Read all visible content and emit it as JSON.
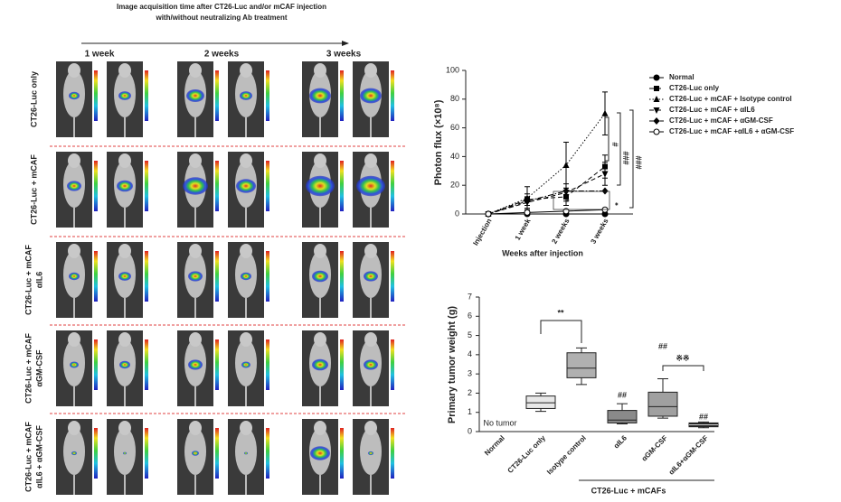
{
  "panel_a": {
    "header": [
      "Image acquisition time after CT26-Luc and/or mCAF injection",
      "with/without neutralizing Ab treatment"
    ],
    "time_labels": [
      "1 week",
      "2 weeks",
      "3 weeks"
    ],
    "row_labels": [
      [
        "CT26-Luc only"
      ],
      [
        "CT26-Luc + mCAF"
      ],
      [
        "CT26-Luc + mCAF",
        "αIL6"
      ],
      [
        "CT26-Luc + mCAF",
        "αGM-CSF"
      ],
      [
        "CT26-Luc + mCAF",
        "αIL6 + αGM-CSF"
      ]
    ]
  },
  "chart_data": [
    {
      "type": "line",
      "ylabel": "Photon flux (×10⁸)",
      "xlabel": "Weeks after injection",
      "categories": [
        "Injection",
        "1 week",
        "2 weeks",
        "3 weeks"
      ],
      "ylim": [
        0,
        100
      ],
      "yticks": [
        0,
        20,
        40,
        60,
        80,
        100
      ],
      "series": [
        {
          "name": "Normal",
          "color": "#000000",
          "marker": "circle",
          "dash": "solid",
          "values": [
            0,
            0,
            0,
            0
          ]
        },
        {
          "name": "CT26-Luc only",
          "color": "#000000",
          "marker": "square",
          "dash": "dashed",
          "values": [
            0,
            10,
            12,
            33
          ],
          "errors": [
            0,
            4,
            6,
            8
          ]
        },
        {
          "name": "CT26-Luc + mCAF + Isotype control",
          "color": "#000000",
          "marker": "triangle",
          "dash": "dotted",
          "values": [
            0,
            11,
            34,
            70
          ],
          "errors": [
            0,
            8,
            16,
            15
          ]
        },
        {
          "name": "CT26-Luc + mCAF + αIL6",
          "color": "#000000",
          "marker": "triangle-down",
          "dash": "dashed",
          "values": [
            0,
            8,
            15,
            28
          ],
          "errors": [
            0,
            4,
            6,
            8
          ]
        },
        {
          "name": "CT26-Luc + mCAF + αGM-CSF",
          "color": "#000000",
          "marker": "diamond",
          "dash": "dashdot",
          "values": [
            0,
            9,
            16,
            16
          ]
        },
        {
          "name": "CT26-Luc + mCAF +αIL6 + αGM-CSF",
          "color": "#000000",
          "marker": "open-circle",
          "dash": "solid",
          "values": [
            0,
            1,
            2,
            3
          ]
        }
      ],
      "annotations": [
        "#",
        "###",
        "###",
        "*",
        "*"
      ]
    },
    {
      "type": "box",
      "ylabel": "Primary tumor weight (g)",
      "categories": [
        "Normal",
        "CT26-Luc only",
        "Isotype control",
        "αIL6",
        "αGM-CSF",
        "αIL6+αGM-CSF"
      ],
      "ylim": [
        0,
        7
      ],
      "yticks": [
        0,
        1,
        2,
        3,
        4,
        5,
        6,
        7
      ],
      "boxes": [
        null,
        {
          "min": 1.05,
          "q1": 1.2,
          "median": 1.5,
          "q3": 1.85,
          "max": 2.0
        },
        {
          "min": 2.45,
          "q1": 2.8,
          "median": 3.3,
          "q3": 4.1,
          "max": 4.35
        },
        {
          "min": 0.4,
          "q1": 0.45,
          "median": 0.6,
          "q3": 1.1,
          "max": 1.45
        },
        {
          "min": 0.7,
          "q1": 0.8,
          "median": 1.3,
          "q3": 2.05,
          "max": 2.75
        },
        {
          "min": 0.2,
          "q1": 0.25,
          "median": 0.35,
          "q3": 0.45,
          "max": 0.5
        }
      ],
      "colors": [
        null,
        "#e8e8e8",
        "#b0b0b0",
        "#8a8a8a",
        "#a0a0a0",
        "#2a2a2a"
      ],
      "annotations": [
        "No tumor",
        "**",
        "##",
        "##",
        "##",
        "※※"
      ],
      "group_label": "CT26-Luc + mCAFs"
    }
  ]
}
